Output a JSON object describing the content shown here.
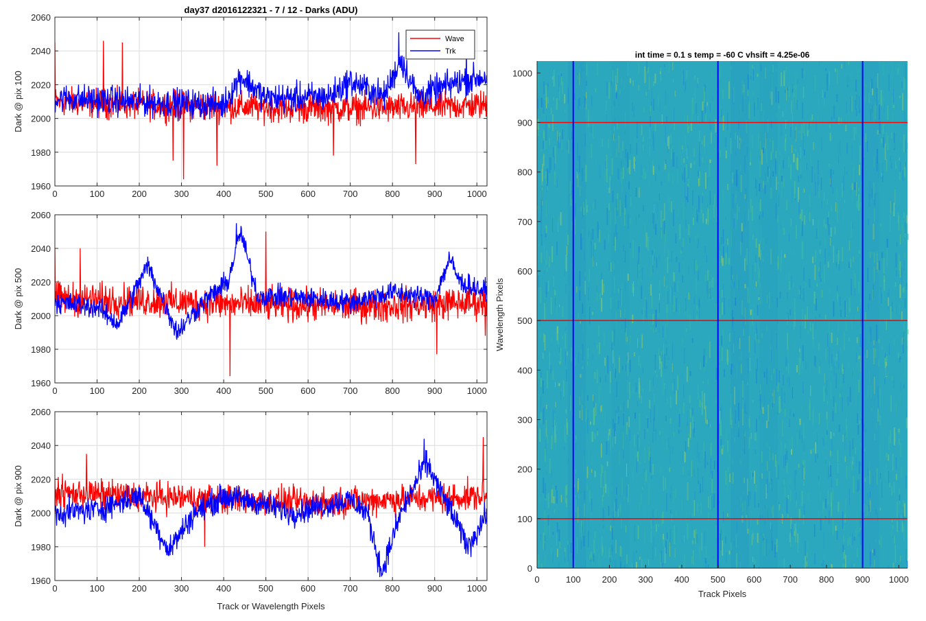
{
  "figure": {
    "title": "day37 d2016122321 - 7 / 12 - Darks (ADU)",
    "xlabel_bottom": "Track or Wavelength Pixels"
  },
  "colors": {
    "wave": "#ff0000",
    "trk": "#0000ff",
    "axis": "#262626",
    "grid": "#dcdcdc"
  },
  "chart_data": [
    {
      "type": "line",
      "ylabel": "Dark @ pix 100",
      "xlim": [
        0,
        1024
      ],
      "ylim": [
        1960,
        2060
      ],
      "xticks": [
        0,
        100,
        200,
        300,
        400,
        500,
        600,
        700,
        800,
        900,
        1000
      ],
      "yticks": [
        1960,
        1980,
        2000,
        2020,
        2040,
        2060
      ],
      "grid": true,
      "legend": "top-right",
      "series": [
        {
          "name": "Wave",
          "color": "#ff0000",
          "baseline": [
            [
              0,
              2010
            ],
            [
              200,
              2008
            ],
            [
              400,
              2007
            ],
            [
              600,
              2006
            ],
            [
              800,
              2006
            ],
            [
              1024,
              2008
            ]
          ],
          "noise": 8,
          "spikes": [
            [
              0,
              2045
            ],
            [
              115,
              2046
            ],
            [
              160,
              2045
            ],
            [
              280,
              1975
            ],
            [
              305,
              1964
            ],
            [
              384,
              1972
            ],
            [
              660,
              1978
            ],
            [
              855,
              1973
            ]
          ]
        },
        {
          "name": "Trk",
          "color": "#0000ff",
          "baseline": [
            [
              0,
              2012
            ],
            [
              200,
              2010
            ],
            [
              400,
              2008
            ],
            [
              440,
              2025
            ],
            [
              500,
              2012
            ],
            [
              650,
              2013
            ],
            [
              700,
              2022
            ],
            [
              780,
              2013
            ],
            [
              820,
              2035
            ],
            [
              860,
              2013
            ],
            [
              960,
              2022
            ],
            [
              1024,
              2025
            ]
          ],
          "noise": 8,
          "spikes": [
            [
              815,
              2051
            ],
            [
              975,
              2042
            ]
          ]
        }
      ]
    },
    {
      "type": "line",
      "ylabel": "Dark @ pix 500",
      "xlim": [
        0,
        1024
      ],
      "ylim": [
        1960,
        2060
      ],
      "xticks": [
        0,
        100,
        200,
        300,
        400,
        500,
        600,
        700,
        800,
        900,
        1000
      ],
      "yticks": [
        1960,
        1980,
        2000,
        2020,
        2040,
        2060
      ],
      "grid": true,
      "series": [
        {
          "name": "Wave",
          "color": "#ff0000",
          "baseline": [
            [
              0,
              2010
            ],
            [
              200,
              2009
            ],
            [
              400,
              2007
            ],
            [
              600,
              2006
            ],
            [
              800,
              2006
            ],
            [
              1024,
              2008
            ]
          ],
          "noise": 9,
          "spikes": [
            [
              0,
              2040
            ],
            [
              60,
              2040
            ],
            [
              415,
              1964
            ],
            [
              500,
              2050
            ],
            [
              905,
              1977
            ],
            [
              1020,
              1988
            ]
          ]
        },
        {
          "name": "Trk",
          "color": "#0000ff",
          "baseline": [
            [
              0,
              2008
            ],
            [
              100,
              2005
            ],
            [
              150,
              1995
            ],
            [
              220,
              2030
            ],
            [
              290,
              1990
            ],
            [
              350,
              2008
            ],
            [
              410,
              2020
            ],
            [
              440,
              2050
            ],
            [
              480,
              2012
            ],
            [
              620,
              2010
            ],
            [
              700,
              2008
            ],
            [
              800,
              2014
            ],
            [
              900,
              2010
            ],
            [
              935,
              2034
            ],
            [
              960,
              2020
            ],
            [
              1024,
              2014
            ]
          ],
          "noise": 6,
          "spikes": [
            [
              430,
              2055
            ]
          ]
        }
      ]
    },
    {
      "type": "line",
      "ylabel": "Dark @ pix 900",
      "xlim": [
        0,
        1024
      ],
      "ylim": [
        1960,
        2060
      ],
      "xticks": [
        0,
        100,
        200,
        300,
        400,
        500,
        600,
        700,
        800,
        900,
        1000
      ],
      "yticks": [
        1960,
        1980,
        2000,
        2020,
        2040,
        2060
      ],
      "grid": true,
      "series": [
        {
          "name": "Wave",
          "color": "#ff0000",
          "baseline": [
            [
              0,
              2012
            ],
            [
              200,
              2010
            ],
            [
              400,
              2008
            ],
            [
              600,
              2006
            ],
            [
              800,
              2008
            ],
            [
              1024,
              2010
            ]
          ],
          "noise": 8,
          "spikes": [
            [
              75,
              2035
            ],
            [
              355,
              1980
            ],
            [
              1015,
              2045
            ]
          ]
        },
        {
          "name": "Trk",
          "color": "#0000ff",
          "baseline": [
            [
              0,
              2000
            ],
            [
              100,
              2002
            ],
            [
              200,
              2010
            ],
            [
              270,
              1978
            ],
            [
              330,
              2000
            ],
            [
              400,
              2010
            ],
            [
              500,
              2005
            ],
            [
              560,
              2000
            ],
            [
              700,
              2008
            ],
            [
              740,
              2000
            ],
            [
              775,
              1965
            ],
            [
              820,
              2000
            ],
            [
              880,
              2030
            ],
            [
              920,
              2010
            ],
            [
              980,
              1980
            ],
            [
              1024,
              2000
            ]
          ],
          "noise": 7,
          "spikes": [
            [
              875,
              2044
            ],
            [
              770,
              1962
            ]
          ]
        }
      ]
    },
    {
      "type": "heatmap",
      "title": "int time = 0.1 s   temp = -60 C   vhsift = 4.25e-06",
      "xlabel": "Track Pixels",
      "ylabel": "Wavelength Pixels",
      "xlim": [
        0,
        1024
      ],
      "ylim": [
        0,
        1024
      ],
      "xticks": [
        0,
        100,
        200,
        300,
        400,
        500,
        600,
        700,
        800,
        900,
        1000
      ],
      "yticks": [
        0,
        100,
        200,
        300,
        400,
        500,
        600,
        700,
        800,
        900,
        1000
      ],
      "colormap": "parula",
      "h_lines": {
        "values": [
          100,
          500,
          900
        ],
        "color": "#ff0000"
      },
      "v_lines": {
        "values": [
          100,
          500,
          900
        ],
        "color": "#0000ff"
      }
    }
  ]
}
